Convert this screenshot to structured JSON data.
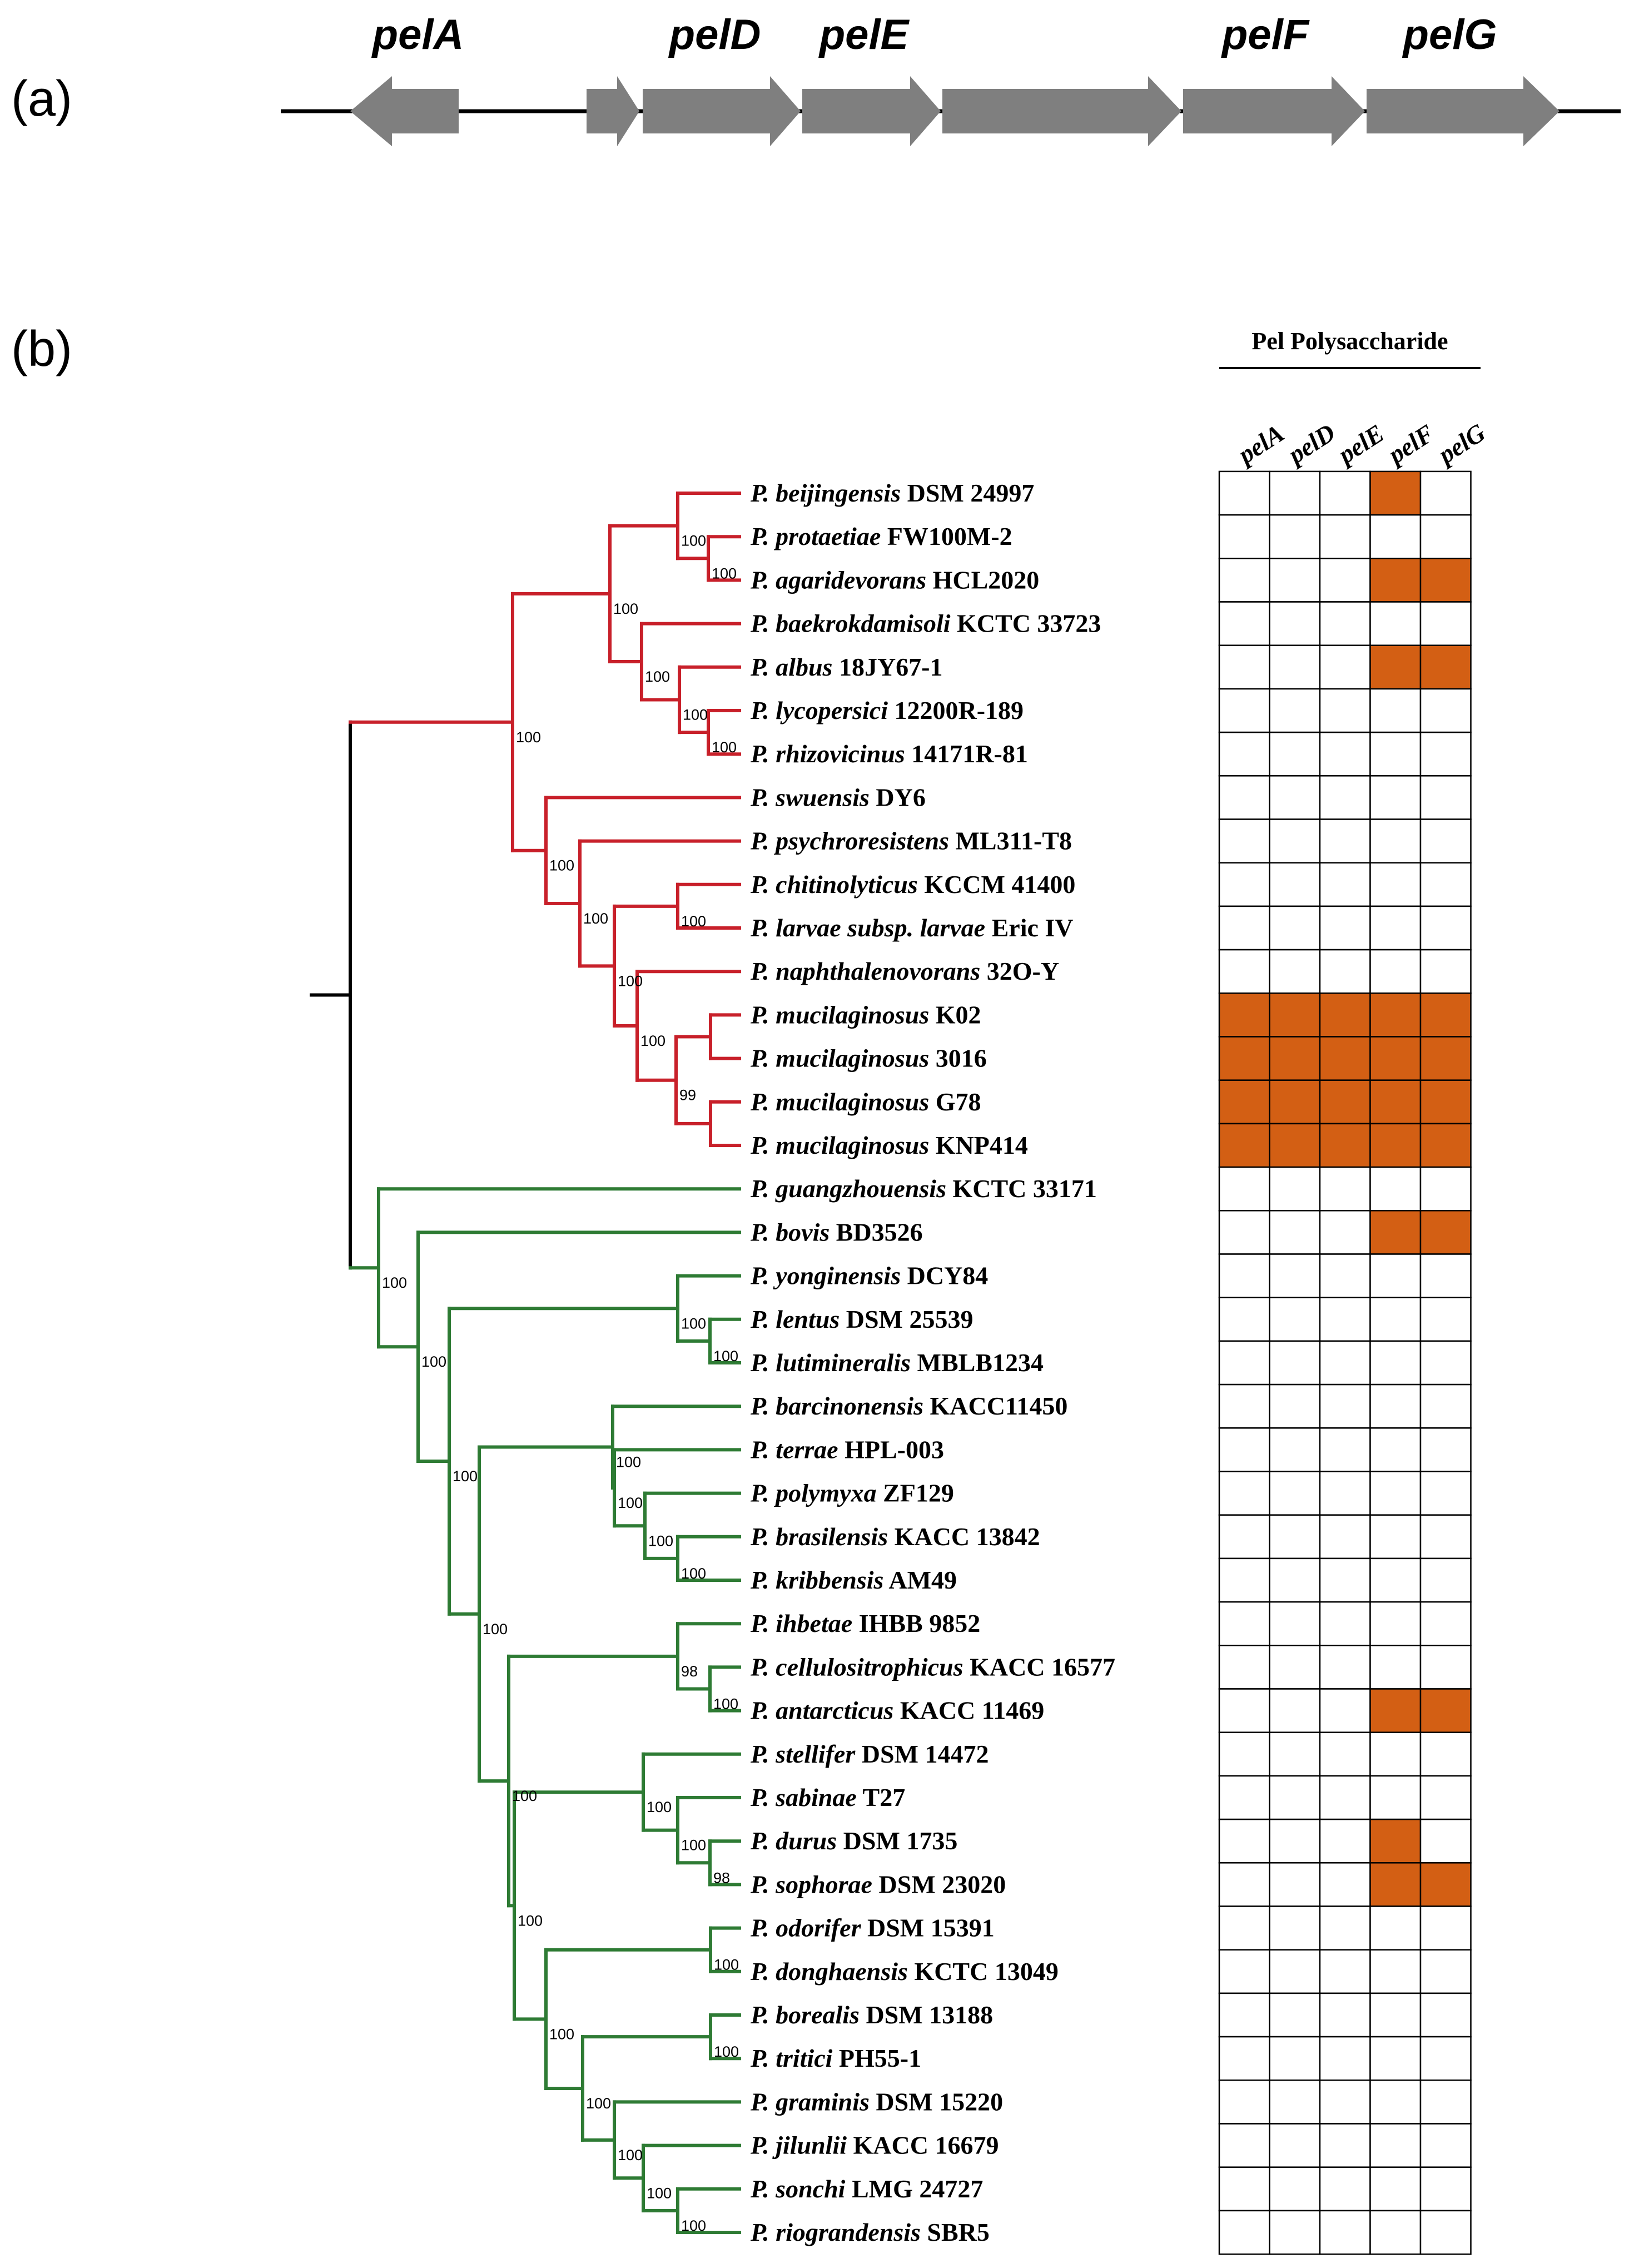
{
  "panel_a": {
    "label": "(a)",
    "genes": [
      "pelA",
      "pelD",
      "pelE",
      "pelF",
      "pelG"
    ]
  },
  "panel_b": {
    "label": "(b)",
    "matrix_title": "Pel Polysaccharide",
    "columns": [
      "pelA",
      "pelD",
      "pelE",
      "pelF",
      "pelG"
    ],
    "present_color": "#D35F14",
    "red_clade_color": "#C8202A",
    "green_clade_color": "#2E7B34",
    "taxa": [
      {
        "species": "P. beijingensis",
        "strain": "DSM 24997",
        "pel": [
          0,
          0,
          0,
          1,
          0
        ]
      },
      {
        "species": "P. protaetiae",
        "strain": "FW100M-2",
        "pel": [
          0,
          0,
          0,
          0,
          0
        ]
      },
      {
        "species": "P. agaridevorans",
        "strain": "HCL2020",
        "pel": [
          0,
          0,
          0,
          1,
          1
        ]
      },
      {
        "species": "P. baekrokdamisoli",
        "strain": "KCTC 33723",
        "pel": [
          0,
          0,
          0,
          0,
          0
        ]
      },
      {
        "species": "P. albus",
        "strain": "18JY67-1",
        "pel": [
          0,
          0,
          0,
          1,
          1
        ]
      },
      {
        "species": "P. lycopersici",
        "strain": "12200R-189",
        "pel": [
          0,
          0,
          0,
          0,
          0
        ]
      },
      {
        "species": "P. rhizovicinus",
        "strain": "14171R-81",
        "pel": [
          0,
          0,
          0,
          0,
          0
        ]
      },
      {
        "species": "P. swuensis",
        "strain": "DY6",
        "pel": [
          0,
          0,
          0,
          0,
          0
        ]
      },
      {
        "species": "P. psychroresistens",
        "strain": "ML311-T8",
        "pel": [
          0,
          0,
          0,
          0,
          0
        ]
      },
      {
        "species": "P. chitinolyticus",
        "strain": "KCCM 41400",
        "pel": [
          0,
          0,
          0,
          0,
          0
        ]
      },
      {
        "species": "P. larvae subsp. larvae",
        "strain": "Eric IV",
        "pel": [
          0,
          0,
          0,
          0,
          0
        ]
      },
      {
        "species": "P. naphthalenovorans",
        "strain": "32O-Y",
        "pel": [
          0,
          0,
          0,
          0,
          0
        ]
      },
      {
        "species": "P. mucilaginosus",
        "strain": "K02",
        "pel": [
          1,
          1,
          1,
          1,
          1
        ]
      },
      {
        "species": "P. mucilaginosus",
        "strain": "3016",
        "pel": [
          1,
          1,
          1,
          1,
          1
        ]
      },
      {
        "species": "P. mucilaginosus",
        "strain": "G78",
        "pel": [
          1,
          1,
          1,
          1,
          1
        ]
      },
      {
        "species": "P. mucilaginosus",
        "strain": "KNP414",
        "pel": [
          1,
          1,
          1,
          1,
          1
        ]
      },
      {
        "species": "P. guangzhouensis",
        "strain": "KCTC 33171",
        "pel": [
          0,
          0,
          0,
          0,
          0
        ]
      },
      {
        "species": "P. bovis",
        "strain": "BD3526",
        "pel": [
          0,
          0,
          0,
          1,
          1
        ]
      },
      {
        "species": "P. yonginensis",
        "strain": "DCY84",
        "pel": [
          0,
          0,
          0,
          0,
          0
        ]
      },
      {
        "species": "P. lentus",
        "strain": "DSM 25539",
        "pel": [
          0,
          0,
          0,
          0,
          0
        ]
      },
      {
        "species": "P. lutimineralis",
        "strain": "MBLB1234",
        "pel": [
          0,
          0,
          0,
          0,
          0
        ]
      },
      {
        "species": "P. barcinonensis",
        "strain": "KACC11450",
        "pel": [
          0,
          0,
          0,
          0,
          0
        ]
      },
      {
        "species": "P. terrae",
        "strain": "HPL-003",
        "pel": [
          0,
          0,
          0,
          0,
          0
        ]
      },
      {
        "species": "P. polymyxa",
        "strain": "ZF129",
        "pel": [
          0,
          0,
          0,
          0,
          0
        ]
      },
      {
        "species": "P. brasilensis",
        "strain": "KACC 13842",
        "pel": [
          0,
          0,
          0,
          0,
          0
        ]
      },
      {
        "species": "P. kribbensis",
        "strain": "AM49",
        "pel": [
          0,
          0,
          0,
          0,
          0
        ]
      },
      {
        "species": "P. ihbetae",
        "strain": "IHBB 9852",
        "pel": [
          0,
          0,
          0,
          0,
          0
        ]
      },
      {
        "species": "P. cellulositrophicus",
        "strain": "KACC 16577",
        "pel": [
          0,
          0,
          0,
          0,
          0
        ]
      },
      {
        "species": "P. antarcticus",
        "strain": "KACC 11469",
        "pel": [
          0,
          0,
          0,
          1,
          1
        ]
      },
      {
        "species": "P. stellifer",
        "strain": "DSM 14472",
        "pel": [
          0,
          0,
          0,
          0,
          0
        ]
      },
      {
        "species": "P. sabinae",
        "strain": "T27",
        "pel": [
          0,
          0,
          0,
          0,
          0
        ]
      },
      {
        "species": "P. durus",
        "strain": "DSM 1735",
        "pel": [
          0,
          0,
          0,
          1,
          0
        ]
      },
      {
        "species": "P. sophorae",
        "strain": "DSM 23020",
        "pel": [
          0,
          0,
          0,
          1,
          1
        ]
      },
      {
        "species": "P. odorifer",
        "strain": "DSM 15391",
        "pel": [
          0,
          0,
          0,
          0,
          0
        ]
      },
      {
        "species": "P. donghaensis",
        "strain": "KCTC 13049",
        "pel": [
          0,
          0,
          0,
          0,
          0
        ]
      },
      {
        "species": "P. borealis",
        "strain": "DSM 13188",
        "pel": [
          0,
          0,
          0,
          0,
          0
        ]
      },
      {
        "species": "P. tritici",
        "strain": "PH55-1",
        "pel": [
          0,
          0,
          0,
          0,
          0
        ]
      },
      {
        "species": "P. graminis",
        "strain": "DSM 15220",
        "pel": [
          0,
          0,
          0,
          0,
          0
        ]
      },
      {
        "species": "P. jilunlii",
        "strain": "KACC 16679",
        "pel": [
          0,
          0,
          0,
          0,
          0
        ]
      },
      {
        "species": "P. sonchi",
        "strain": "LMG 24727",
        "pel": [
          0,
          0,
          0,
          0,
          0
        ]
      },
      {
        "species": "P. riograndensis",
        "strain": "SBR5",
        "pel": [
          0,
          0,
          0,
          0,
          0
        ]
      }
    ],
    "bootstrap": [
      "100",
      "100",
      "100",
      "100",
      "100",
      "100",
      "100",
      "100",
      "100",
      "100",
      "100",
      "99",
      "100",
      "100",
      "100",
      "100",
      "100",
      "100",
      "100",
      "100",
      "100",
      "98",
      "100",
      "100",
      "100",
      "100",
      "100",
      "100",
      "100",
      "100",
      "100",
      "100",
      "100",
      "100",
      "100"
    ]
  }
}
